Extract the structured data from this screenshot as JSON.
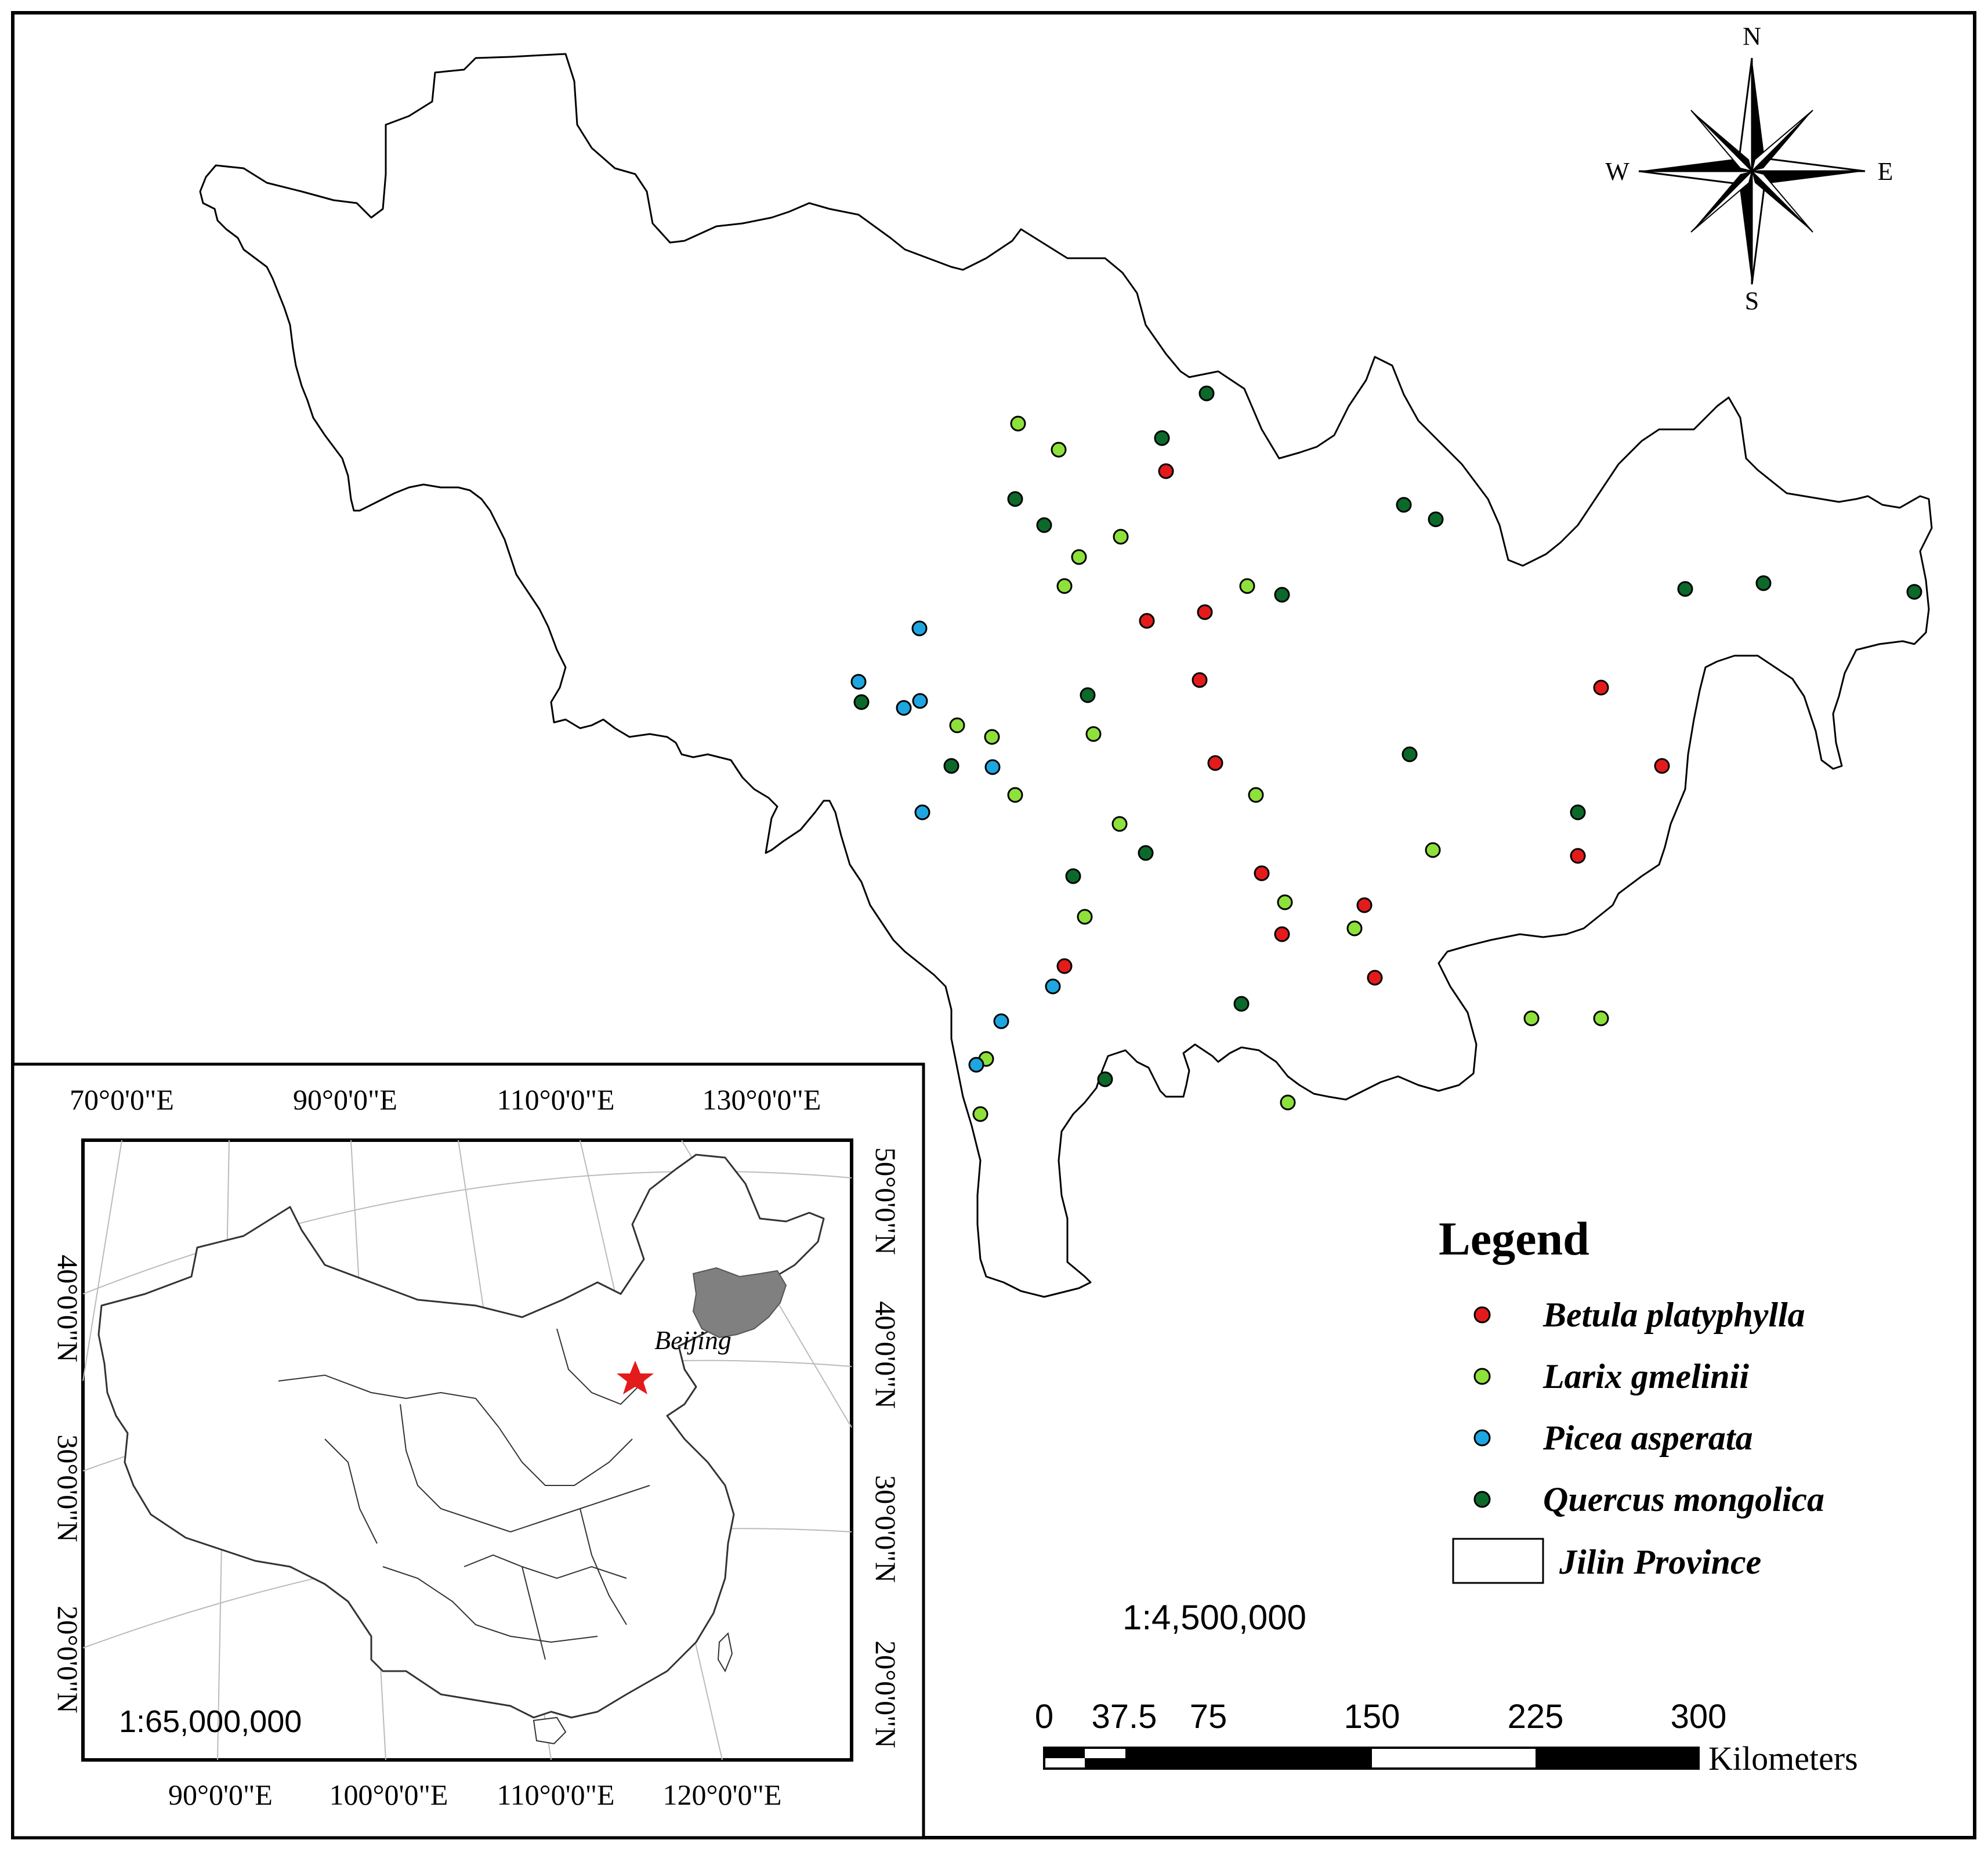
{
  "compass": {
    "n": "N",
    "s": "S",
    "e": "E",
    "w": "W"
  },
  "legend": {
    "title": "Legend",
    "items": [
      {
        "label": "Betula platyphylla",
        "color": "#e41b1b",
        "symbol": "dot"
      },
      {
        "label": "Larix gmelinii",
        "color": "#8de13a",
        "symbol": "dot"
      },
      {
        "label": "Picea asperata",
        "color": "#1da6e0",
        "symbol": "dot"
      },
      {
        "label": "Quercus mongolica",
        "color": "#0b6a2a",
        "symbol": "dot"
      },
      {
        "label": "Jilin Province",
        "color": "#ffffff",
        "symbol": "box"
      }
    ]
  },
  "main_scale": "1:4,500,000",
  "scalebar": {
    "ticks": [
      "0",
      "37.5",
      "75",
      "150",
      "225",
      "300"
    ],
    "unit": "Kilometers"
  },
  "inset": {
    "scale": "1:65,000,000",
    "top_labels": [
      "70°0'0\"E",
      "90°0'0\"E",
      "110°0'0\"E",
      "130°0'0\"E"
    ],
    "bottom_labels": [
      "90°0'0\"E",
      "100°0'0\"E",
      "110°0'0\"E",
      "120°0'0\"E"
    ],
    "left_labels": [
      "40°0'0\"N",
      "30°0'0\"N",
      "20°0'0\"N"
    ],
    "right_labels": [
      "50°0'0\"N",
      "40°0'0\"N",
      "30°0'0\"N",
      "20°0'0\"N"
    ],
    "city_label": "Beijing",
    "highlight_color": "#808080",
    "star_color": "#e41b1b"
  },
  "sample_points": {
    "betula": [
      [
        2010,
        812
      ],
      [
        2077,
        1055
      ],
      [
        2068,
        1172
      ],
      [
        1977,
        1070
      ],
      [
        2095,
        1315
      ],
      [
        2175,
        1505
      ],
      [
        1835,
        1665
      ],
      [
        2210,
        1610
      ],
      [
        2352,
        1560
      ],
      [
        2370,
        1685
      ],
      [
        2760,
        1185
      ],
      [
        2720,
        1475
      ],
      [
        2865,
        1320
      ]
    ],
    "larix": [
      [
        1755,
        730
      ],
      [
        1825,
        775
      ],
      [
        1932,
        925
      ],
      [
        1860,
        960
      ],
      [
        2150,
        1010
      ],
      [
        1835,
        1010
      ],
      [
        1650,
        1250
      ],
      [
        1710,
        1270
      ],
      [
        1750,
        1370
      ],
      [
        1885,
        1265
      ],
      [
        1930,
        1420
      ],
      [
        2165,
        1370
      ],
      [
        2215,
        1555
      ],
      [
        2335,
        1600
      ],
      [
        2640,
        1755
      ],
      [
        2760,
        1755
      ],
      [
        2220,
        1900
      ],
      [
        1700,
        1825
      ],
      [
        1690,
        1920
      ],
      [
        1870,
        1580
      ],
      [
        2470,
        1465
      ]
    ],
    "picea": [
      [
        1585,
        1083
      ],
      [
        1558,
        1220
      ],
      [
        1586,
        1208
      ],
      [
        1711,
        1322
      ],
      [
        1815,
        1700
      ],
      [
        1726,
        1760
      ],
      [
        1683,
        1835
      ],
      [
        1480,
        1175
      ],
      [
        1590,
        1400
      ]
    ],
    "quercus": [
      [
        2080,
        678
      ],
      [
        2003,
        755
      ],
      [
        1800,
        905
      ],
      [
        1750,
        860
      ],
      [
        1875,
        1198
      ],
      [
        1975,
        1470
      ],
      [
        1850,
        1510
      ],
      [
        1905,
        1860
      ],
      [
        2210,
        1025
      ],
      [
        2420,
        870
      ],
      [
        2475,
        895
      ],
      [
        2430,
        1300
      ],
      [
        2720,
        1400
      ],
      [
        2905,
        1015
      ],
      [
        3040,
        1005
      ],
      [
        3300,
        1020
      ],
      [
        2140,
        1730
      ],
      [
        1640,
        1320
      ],
      [
        1485,
        1210
      ]
    ]
  }
}
